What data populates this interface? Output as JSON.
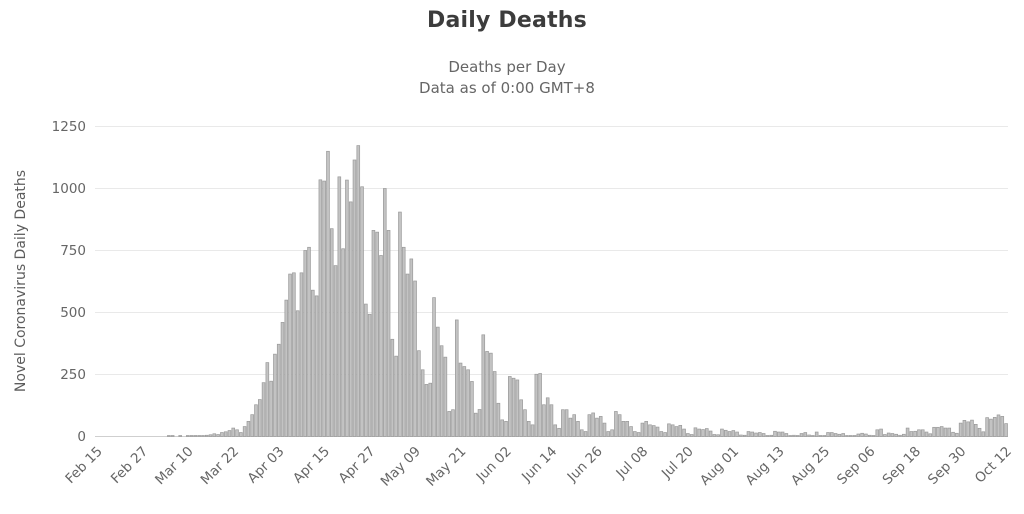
{
  "chart_data": {
    "type": "bar",
    "title": "Daily Deaths",
    "subtitle_lines": [
      "Deaths per Day",
      "Data as of 0:00 GMT+8"
    ],
    "y_axis_title": "Novel Coronavirus Daily Deaths",
    "xlabel": "",
    "ylabel": "Novel Coronavirus Daily Deaths",
    "ylim": [
      0,
      1250
    ],
    "y_ticks": [
      0,
      250,
      500,
      750,
      1000,
      1250
    ],
    "x_tick_interval": 12,
    "x_tick_labels": [
      "Feb 15",
      "Feb 27",
      "Mar 10",
      "Mar 22",
      "Apr 03",
      "Apr 15",
      "Apr 27",
      "May 09",
      "May 21",
      "Jun 02",
      "Jun 14",
      "Jun 26",
      "Jul 08",
      "Jul 20",
      "Aug 01",
      "Aug 13",
      "Aug 25",
      "Sep 06",
      "Sep 18",
      "Sep 30",
      "Oct 12"
    ],
    "grid": true,
    "legend": false,
    "colors": {
      "bar_fill": "#c3c3c3",
      "bar_stroke": "#999999",
      "grid_line": "#e9e9e9",
      "axis_line": "#cfcfcf",
      "tick_text": "#666666",
      "title_text": "#3c3c3c",
      "subtitle_text": "#666666"
    },
    "dates": [
      "Feb 15",
      "Feb 16",
      "Feb 17",
      "Feb 18",
      "Feb 19",
      "Feb 20",
      "Feb 21",
      "Feb 22",
      "Feb 23",
      "Feb 24",
      "Feb 25",
      "Feb 26",
      "Feb 27",
      "Feb 28",
      "Feb 29",
      "Mar 01",
      "Mar 02",
      "Mar 03",
      "Mar 04",
      "Mar 05",
      "Mar 06",
      "Mar 07",
      "Mar 08",
      "Mar 09",
      "Mar 10",
      "Mar 11",
      "Mar 12",
      "Mar 13",
      "Mar 14",
      "Mar 15",
      "Mar 16",
      "Mar 17",
      "Mar 18",
      "Mar 19",
      "Mar 20",
      "Mar 21",
      "Mar 22",
      "Mar 23",
      "Mar 24",
      "Mar 25",
      "Mar 26",
      "Mar 27",
      "Mar 28",
      "Mar 29",
      "Mar 30",
      "Mar 31",
      "Apr 01",
      "Apr 02",
      "Apr 03",
      "Apr 04",
      "Apr 05",
      "Apr 06",
      "Apr 07",
      "Apr 08",
      "Apr 09",
      "Apr 10",
      "Apr 11",
      "Apr 12",
      "Apr 13",
      "Apr 14",
      "Apr 15",
      "Apr 16",
      "Apr 17",
      "Apr 18",
      "Apr 19",
      "Apr 20",
      "Apr 21",
      "Apr 22",
      "Apr 23",
      "Apr 24",
      "Apr 25",
      "Apr 26",
      "Apr 27",
      "Apr 28",
      "Apr 29",
      "Apr 30",
      "May 01",
      "May 02",
      "May 03",
      "May 04",
      "May 05",
      "May 06",
      "May 07",
      "May 08",
      "May 09",
      "May 10",
      "May 11",
      "May 12",
      "May 13",
      "May 14",
      "May 15",
      "May 16",
      "May 17",
      "May 18",
      "May 19",
      "May 20",
      "May 21",
      "May 22",
      "May 23",
      "May 24",
      "May 25",
      "May 26",
      "May 27",
      "May 28",
      "May 29",
      "May 30",
      "May 31",
      "Jun 01",
      "Jun 02",
      "Jun 03",
      "Jun 04",
      "Jun 05",
      "Jun 06",
      "Jun 07",
      "Jun 08",
      "Jun 09",
      "Jun 10",
      "Jun 11",
      "Jun 12",
      "Jun 13",
      "Jun 14",
      "Jun 15",
      "Jun 16",
      "Jun 17",
      "Jun 18",
      "Jun 19",
      "Jun 20",
      "Jun 21",
      "Jun 22",
      "Jun 23",
      "Jun 24",
      "Jun 25",
      "Jun 26",
      "Jun 27",
      "Jun 28",
      "Jun 29",
      "Jun 30",
      "Jul 01",
      "Jul 02",
      "Jul 03",
      "Jul 04",
      "Jul 05",
      "Jul 06",
      "Jul 07",
      "Jul 08",
      "Jul 09",
      "Jul 10",
      "Jul 11",
      "Jul 12",
      "Jul 13",
      "Jul 14",
      "Jul 15",
      "Jul 16",
      "Jul 17",
      "Jul 18",
      "Jul 19",
      "Jul 20",
      "Jul 21",
      "Jul 22",
      "Jul 23",
      "Jul 24",
      "Jul 25",
      "Jul 26",
      "Jul 27",
      "Jul 28",
      "Jul 29",
      "Jul 30",
      "Jul 31",
      "Aug 01",
      "Aug 02",
      "Aug 03",
      "Aug 04",
      "Aug 05",
      "Aug 06",
      "Aug 07",
      "Aug 08",
      "Aug 09",
      "Aug 10",
      "Aug 11",
      "Aug 12",
      "Aug 13",
      "Aug 14",
      "Aug 15",
      "Aug 16",
      "Aug 17",
      "Aug 18",
      "Aug 19",
      "Aug 20",
      "Aug 21",
      "Aug 22",
      "Aug 23",
      "Aug 24",
      "Aug 25",
      "Aug 26",
      "Aug 27",
      "Aug 28",
      "Aug 29",
      "Aug 30",
      "Aug 31",
      "Sep 01",
      "Sep 02",
      "Sep 03",
      "Sep 04",
      "Sep 05",
      "Sep 06",
      "Sep 07",
      "Sep 08",
      "Sep 09",
      "Sep 10",
      "Sep 11",
      "Sep 12",
      "Sep 13",
      "Sep 14",
      "Sep 15",
      "Sep 16",
      "Sep 17",
      "Sep 18",
      "Sep 19",
      "Sep 20",
      "Sep 21",
      "Sep 22",
      "Sep 23",
      "Sep 24",
      "Sep 25",
      "Sep 26",
      "Sep 27",
      "Sep 28",
      "Sep 29",
      "Sep 30",
      "Oct 01",
      "Oct 02",
      "Oct 03",
      "Oct 04",
      "Oct 05",
      "Oct 06",
      "Oct 07",
      "Oct 08",
      "Oct 09",
      "Oct 10",
      "Oct 11",
      "Oct 12"
    ],
    "values": [
      0,
      0,
      0,
      0,
      0,
      0,
      0,
      0,
      0,
      0,
      0,
      0,
      0,
      0,
      0,
      0,
      0,
      0,
      0,
      1,
      1,
      0,
      1,
      0,
      2,
      2,
      2,
      1,
      2,
      5,
      7,
      11,
      8,
      16,
      19,
      24,
      34,
      27,
      16,
      40,
      61,
      88,
      128,
      149,
      217,
      298,
      223,
      332,
      372,
      460,
      550,
      655,
      660,
      507,
      660,
      750,
      763,
      590,
      567,
      1035,
      1030,
      1150,
      838,
      689,
      1047,
      757,
      1034,
      946,
      1115,
      1173,
      1007,
      534,
      493,
      831,
      824,
      730,
      1000,
      831,
      392,
      324,
      905,
      763,
      655,
      716,
      627,
      346,
      269,
      210,
      215,
      560,
      441,
      366,
      320,
      101,
      108,
      470,
      296,
      282,
      269,
      222,
      94,
      109,
      410,
      343,
      336,
      262,
      134,
      67,
      61,
      242,
      235,
      228,
      148,
      108,
      61,
      47,
      251,
      254,
      128,
      156,
      128,
      47,
      33,
      108,
      108,
      74,
      88,
      61,
      27,
      20,
      88,
      95,
      74,
      81,
      54,
      20,
      27,
      101,
      88,
      61,
      61,
      40,
      20,
      16,
      54,
      61,
      47,
      44,
      38,
      20,
      16,
      51,
      47,
      40,
      45,
      30,
      12,
      8,
      35,
      30,
      28,
      32,
      22,
      8,
      7,
      30,
      25,
      20,
      24,
      18,
      6,
      5,
      20,
      18,
      14,
      16,
      12,
      4,
      5,
      21,
      18,
      18,
      12,
      3,
      5,
      3,
      12,
      16,
      6,
      2,
      18,
      1,
      4,
      16,
      16,
      12,
      9,
      12,
      1,
      2,
      3,
      10,
      13,
      10,
      5,
      3,
      27,
      30,
      8,
      14,
      12,
      9,
      5,
      9,
      34,
      20,
      21,
      27,
      27,
      18,
      11,
      37,
      37,
      40,
      34,
      34,
      17,
      13,
      54,
      65,
      59,
      66,
      49,
      33,
      19,
      76,
      70,
      77,
      87,
      81,
      52
    ]
  }
}
